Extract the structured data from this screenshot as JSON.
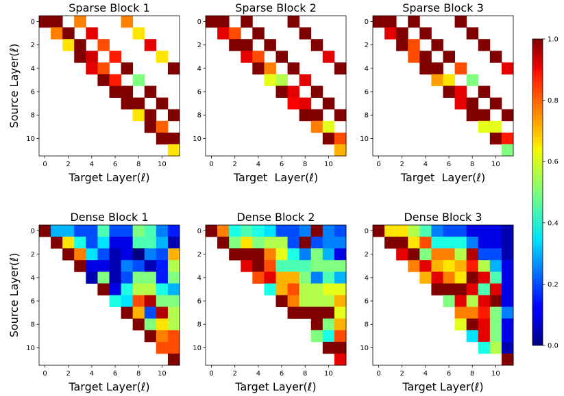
{
  "chart_data": {
    "type": "heatmap",
    "colormap": "jet",
    "value_range": [
      0.0,
      1.0
    ],
    "colorbar": {
      "ticks": [
        0.0,
        0.2,
        0.4,
        0.6,
        0.8,
        1.0
      ],
      "tick_labels": [
        "0.0",
        "0.2",
        "0.4",
        "0.6",
        "0.8",
        "1.0"
      ]
    },
    "panels": [
      {
        "title": "Sparse Block 1",
        "xlabel": "Target Layer(ℓ)",
        "ylabel": "Source Layer(ℓ)",
        "x_ticks": [
          "0",
          "2",
          "4",
          "6",
          "8",
          "10"
        ],
        "y_ticks": [
          "0",
          "2",
          "4",
          "6",
          "8",
          "10"
        ],
        "matrix": [
          [
            1.0,
            1.0,
            null,
            0.75,
            null,
            null,
            null,
            0.75,
            null,
            null,
            null,
            null
          ],
          [
            null,
            0.75,
            1.0,
            null,
            0.9,
            null,
            null,
            null,
            0.65,
            null,
            null,
            null
          ],
          [
            null,
            null,
            0.65,
            1.0,
            null,
            0.8,
            null,
            null,
            null,
            0.9,
            null,
            null
          ],
          [
            null,
            null,
            null,
            1.0,
            0.92,
            null,
            0.85,
            null,
            null,
            null,
            0.65,
            null
          ],
          [
            null,
            null,
            null,
            null,
            0.9,
            0.8,
            null,
            1.0,
            null,
            null,
            null,
            1.0
          ],
          [
            null,
            null,
            null,
            null,
            null,
            1.0,
            0.85,
            null,
            0.5,
            null,
            null,
            null
          ],
          [
            null,
            null,
            null,
            null,
            null,
            null,
            1.0,
            1.0,
            null,
            1.0,
            null,
            null
          ],
          [
            null,
            null,
            null,
            null,
            null,
            null,
            null,
            1.0,
            1.0,
            null,
            1.0,
            null
          ],
          [
            null,
            null,
            null,
            null,
            null,
            null,
            null,
            null,
            0.65,
            1.0,
            null,
            1.0
          ],
          [
            null,
            null,
            null,
            null,
            null,
            null,
            null,
            null,
            null,
            1.0,
            0.78,
            null
          ],
          [
            null,
            null,
            null,
            null,
            null,
            null,
            null,
            null,
            null,
            null,
            1.0,
            1.0
          ],
          [
            null,
            null,
            null,
            null,
            null,
            null,
            null,
            null,
            null,
            null,
            null,
            0.65
          ]
        ]
      },
      {
        "title": "Sparse Block 2",
        "xlabel": "Target  Layer(ℓ)",
        "ylabel": "",
        "x_ticks": [
          "0",
          "2",
          "4",
          "6",
          "8",
          "10"
        ],
        "y_ticks": [
          "0",
          "2",
          "4",
          "6",
          "8",
          "10"
        ],
        "matrix": [
          [
            1.0,
            1.0,
            null,
            1.0,
            null,
            null,
            null,
            1.0,
            null,
            null,
            null,
            null
          ],
          [
            null,
            0.9,
            0.8,
            null,
            1.0,
            null,
            null,
            null,
            1.0,
            null,
            null,
            null
          ],
          [
            null,
            null,
            1.0,
            1.0,
            null,
            1.0,
            null,
            null,
            null,
            1.0,
            null,
            null
          ],
          [
            null,
            null,
            null,
            0.9,
            0.8,
            null,
            1.0,
            null,
            null,
            null,
            0.9,
            null
          ],
          [
            null,
            null,
            null,
            null,
            1.0,
            0.75,
            null,
            1.0,
            null,
            null,
            null,
            1.0
          ],
          [
            null,
            null,
            null,
            null,
            null,
            0.6,
            0.55,
            null,
            0.9,
            null,
            null,
            null
          ],
          [
            null,
            null,
            null,
            null,
            null,
            null,
            1.0,
            0.9,
            null,
            1.0,
            null,
            null
          ],
          [
            null,
            null,
            null,
            null,
            null,
            null,
            null,
            0.88,
            0.9,
            null,
            1.0,
            null
          ],
          [
            null,
            null,
            null,
            null,
            null,
            null,
            null,
            null,
            1.0,
            1.0,
            null,
            1.0
          ],
          [
            null,
            null,
            null,
            null,
            null,
            null,
            null,
            null,
            null,
            0.75,
            0.6,
            null
          ],
          [
            null,
            null,
            null,
            null,
            null,
            null,
            null,
            null,
            null,
            null,
            1.0,
            0.8
          ],
          [
            null,
            null,
            null,
            null,
            null,
            null,
            null,
            null,
            null,
            null,
            null,
            0.7
          ]
        ]
      },
      {
        "title": "Sparse Block 3",
        "xlabel": "Target  Layer(ℓ)",
        "ylabel": "",
        "x_ticks": [
          "0",
          "2",
          "4",
          "6",
          "8",
          "10"
        ],
        "y_ticks": [
          "0",
          "2",
          "4",
          "6",
          "8",
          "10"
        ],
        "matrix": [
          [
            1.0,
            1.0,
            null,
            1.0,
            null,
            null,
            null,
            1.0,
            null,
            null,
            null,
            null
          ],
          [
            null,
            0.9,
            1.0,
            null,
            1.0,
            null,
            null,
            null,
            1.0,
            null,
            null,
            null
          ],
          [
            null,
            null,
            1.0,
            0.8,
            null,
            1.0,
            null,
            null,
            null,
            1.0,
            null,
            null
          ],
          [
            null,
            null,
            null,
            0.8,
            1.0,
            null,
            1.0,
            null,
            null,
            null,
            1.0,
            null
          ],
          [
            null,
            null,
            null,
            null,
            1.0,
            1.0,
            null,
            0.8,
            null,
            null,
            null,
            0.9
          ],
          [
            null,
            null,
            null,
            null,
            null,
            0.72,
            0.65,
            null,
            0.5,
            null,
            null,
            null
          ],
          [
            null,
            null,
            null,
            null,
            null,
            null,
            1.0,
            0.9,
            null,
            1.0,
            null,
            null
          ],
          [
            null,
            null,
            null,
            null,
            null,
            null,
            null,
            0.9,
            1.0,
            null,
            1.0,
            null
          ],
          [
            null,
            null,
            null,
            null,
            null,
            null,
            null,
            null,
            1.0,
            1.0,
            null,
            1.0
          ],
          [
            null,
            null,
            null,
            null,
            null,
            null,
            null,
            null,
            null,
            0.6,
            0.6,
            null
          ],
          [
            null,
            null,
            null,
            null,
            null,
            null,
            null,
            null,
            null,
            null,
            1.0,
            0.85
          ],
          [
            null,
            null,
            null,
            null,
            null,
            null,
            null,
            null,
            null,
            null,
            null,
            0.5
          ]
        ]
      },
      {
        "title": "Dense Block 1",
        "xlabel": "Target Layer(ℓ)",
        "ylabel": "Source Layer(ℓ)",
        "x_ticks": [
          "0",
          "2",
          "4",
          "6",
          "8",
          "10"
        ],
        "y_ticks": [
          "0",
          "2",
          "4",
          "6",
          "8",
          "10"
        ],
        "matrix": [
          [
            1.0,
            0.3,
            0.3,
            0.2,
            0.2,
            0.45,
            0.2,
            0.2,
            0.5,
            0.45,
            0.25,
            0.15
          ],
          [
            null,
            1.0,
            0.65,
            0.4,
            0.2,
            0.35,
            0.1,
            0.1,
            0.45,
            0.45,
            0.3,
            0.05
          ],
          [
            null,
            null,
            1.0,
            0.75,
            0.35,
            0.2,
            0.05,
            0.1,
            0.0,
            0.25,
            0.2,
            0.7
          ],
          [
            null,
            null,
            null,
            1.0,
            0.1,
            0.1,
            0.05,
            0.25,
            0.2,
            0.05,
            0.15,
            0.55
          ],
          [
            null,
            null,
            null,
            null,
            0.05,
            0.5,
            0.05,
            0.2,
            0.5,
            0.5,
            0.15,
            0.5
          ],
          [
            null,
            null,
            null,
            null,
            null,
            1.0,
            0.1,
            0.4,
            0.55,
            0.55,
            0.4,
            0.3
          ],
          [
            null,
            null,
            null,
            null,
            null,
            null,
            0.4,
            0.35,
            0.8,
            0.95,
            0.5,
            0.5
          ],
          [
            null,
            null,
            null,
            null,
            null,
            null,
            null,
            1.0,
            0.7,
            0.2,
            0.95,
            0.55
          ],
          [
            null,
            null,
            null,
            null,
            null,
            null,
            null,
            null,
            1.0,
            0.5,
            0.65,
            0.55
          ],
          [
            null,
            null,
            null,
            null,
            null,
            null,
            null,
            null,
            null,
            1.0,
            0.75,
            0.8
          ],
          [
            null,
            null,
            null,
            null,
            null,
            null,
            null,
            null,
            null,
            null,
            0.8,
            0.8
          ],
          [
            null,
            null,
            null,
            null,
            null,
            null,
            null,
            null,
            null,
            null,
            null,
            1.0
          ]
        ]
      },
      {
        "title": "Dense Block 2",
        "xlabel": "Target Layer(ℓ)",
        "ylabel": "",
        "x_ticks": [
          "0",
          "2",
          "4",
          "6",
          "8",
          "10"
        ],
        "y_ticks": [
          "0",
          "2",
          "4",
          "6",
          "8",
          "10"
        ],
        "matrix": [
          [
            1.0,
            0.75,
            0.4,
            0.45,
            0.4,
            0.35,
            0.2,
            0.2,
            0.25,
            1.0,
            0.25,
            0.2
          ],
          [
            null,
            1.0,
            0.5,
            0.65,
            0.5,
            0.55,
            0.55,
            0.2,
            1.0,
            0.2,
            0.25,
            0.25
          ],
          [
            null,
            null,
            1.0,
            1.0,
            1.0,
            0.75,
            0.6,
            0.4,
            0.25,
            0.5,
            0.3,
            0.1
          ],
          [
            null,
            null,
            null,
            0.9,
            1.0,
            0.8,
            0.45,
            0.45,
            0.45,
            0.5,
            0.5,
            0.5
          ],
          [
            null,
            null,
            null,
            null,
            0.8,
            0.9,
            0.7,
            0.7,
            0.5,
            0.25,
            0.45,
            0.3
          ],
          [
            null,
            null,
            null,
            null,
            null,
            0.4,
            0.7,
            0.8,
            0.55,
            0.55,
            0.6,
            0.6
          ],
          [
            null,
            null,
            null,
            null,
            null,
            null,
            1.0,
            0.75,
            0.55,
            0.55,
            0.55,
            0.7
          ],
          [
            null,
            null,
            null,
            null,
            null,
            null,
            null,
            1.0,
            1.0,
            1.0,
            1.0,
            0.6
          ],
          [
            null,
            null,
            null,
            null,
            null,
            null,
            null,
            null,
            null,
            1.0,
            0.5,
            0.7
          ],
          [
            null,
            null,
            null,
            null,
            null,
            null,
            null,
            null,
            null,
            0.5,
            0.4,
            0.8
          ],
          [
            null,
            null,
            null,
            null,
            null,
            null,
            null,
            null,
            null,
            null,
            1.0,
            1.0
          ],
          [
            null,
            null,
            null,
            null,
            null,
            null,
            null,
            null,
            null,
            null,
            null,
            0.9
          ]
        ]
      },
      {
        "title": "Dense Block 3",
        "xlabel": "Target Layer(ℓ)",
        "ylabel": "",
        "x_ticks": [
          "0",
          "2",
          "4",
          "6",
          "8",
          "10"
        ],
        "y_ticks": [
          "0",
          "2",
          "4",
          "6",
          "8",
          "10"
        ],
        "matrix": [
          [
            1.0,
            0.65,
            0.65,
            0.55,
            0.45,
            0.25,
            0.2,
            0.2,
            0.1,
            0.1,
            0.1,
            0.05
          ],
          [
            null,
            1.0,
            1.0,
            0.65,
            0.8,
            0.4,
            0.4,
            0.4,
            0.25,
            0.1,
            0.1,
            0.05
          ],
          [
            null,
            null,
            0.9,
            1.0,
            0.5,
            0.75,
            0.75,
            0.55,
            0.95,
            0.2,
            0.2,
            0.05
          ],
          [
            null,
            null,
            null,
            0.75,
            0.9,
            0.7,
            0.65,
            0.7,
            0.85,
            0.55,
            0.3,
            0.1
          ],
          [
            null,
            null,
            null,
            null,
            0.7,
            0.9,
            0.75,
            0.65,
            1.0,
            0.9,
            0.45,
            0.1
          ],
          [
            null,
            null,
            null,
            null,
            null,
            1.0,
            1.0,
            1.0,
            0.9,
            0.45,
            0.9,
            0.1
          ],
          [
            null,
            null,
            null,
            null,
            null,
            null,
            0.5,
            0.9,
            0.55,
            0.9,
            1.0,
            0.1
          ],
          [
            null,
            null,
            null,
            null,
            null,
            null,
            null,
            0.75,
            0.75,
            0.85,
            0.5,
            0.25
          ],
          [
            null,
            null,
            null,
            null,
            null,
            null,
            null,
            0.6,
            1.0,
            0.9,
            0.5,
            0.1
          ],
          [
            null,
            null,
            null,
            null,
            null,
            null,
            null,
            null,
            0.35,
            0.9,
            0.5,
            0.1
          ],
          [
            null,
            null,
            null,
            null,
            null,
            null,
            null,
            null,
            null,
            0.4,
            0.55,
            0.05
          ],
          [
            null,
            null,
            null,
            null,
            null,
            null,
            null,
            null,
            null,
            null,
            null,
            1.0
          ]
        ]
      }
    ]
  }
}
